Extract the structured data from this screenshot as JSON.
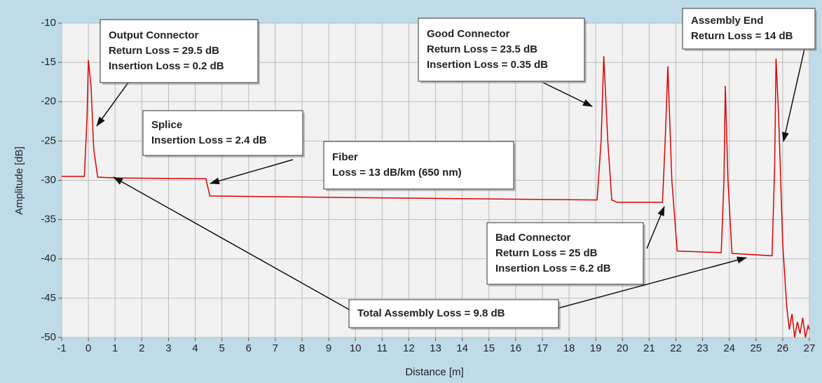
{
  "chart_data": {
    "type": "line",
    "xlabel": "Distance [m]",
    "ylabel": "Amplitude [dB]",
    "xlim": [
      -1,
      27
    ],
    "ylim": [
      -50,
      -10
    ],
    "xticks": [
      -1,
      0,
      1,
      2,
      3,
      4,
      5,
      6,
      7,
      8,
      9,
      10,
      11,
      12,
      13,
      14,
      15,
      16,
      17,
      18,
      19,
      20,
      21,
      22,
      23,
      24,
      25,
      26,
      27
    ],
    "yticks": [
      -10,
      -15,
      -20,
      -25,
      -30,
      -35,
      -40,
      -45,
      -50
    ],
    "grid": true,
    "x": [
      -1,
      -0.15,
      -0.05,
      0.0,
      0.1,
      0.2,
      0.35,
      1,
      4.4,
      4.55,
      10,
      19.05,
      19.2,
      19.3,
      19.45,
      19.6,
      19.8,
      21.5,
      21.6,
      21.7,
      21.85,
      22.05,
      23.7,
      23.8,
      23.85,
      23.95,
      24.1,
      25.6,
      25.7,
      25.75,
      25.85,
      26.0,
      26.15,
      26.25,
      26.35,
      26.45,
      26.55,
      26.65,
      26.75,
      26.85,
      26.95,
      27
    ],
    "series": [
      {
        "color": "#e00000",
        "values": [
          -29.5,
          -29.5,
          -22,
          -14.7,
          -18,
          -26,
          -29.6,
          -29.7,
          -29.8,
          -32,
          -32.2,
          -32.5,
          -25,
          -14.2,
          -25,
          -32.5,
          -32.8,
          -32.8,
          -25,
          -15.5,
          -30,
          -39,
          -39.2,
          -30,
          -18,
          -30,
          -39.3,
          -39.6,
          -28,
          -14.5,
          -22,
          -38,
          -46,
          -49,
          -47,
          -50,
          -48,
          -49.5,
          -47.5,
          -50,
          -48.5,
          -49
        ]
      }
    ],
    "annotations": [
      {
        "lines": [
          "Output Connector",
          "Return Loss = 29.5 dB",
          "Insertion Loss = 0.2 dB"
        ]
      },
      {
        "lines": [
          "Splice",
          "Insertion Loss = 2.4 dB"
        ]
      },
      {
        "lines": [
          "Fiber",
          "Loss = 13 dB/km (650 nm)"
        ]
      },
      {
        "lines": [
          "Good Connector",
          "Return Loss = 23.5 dB",
          "Insertion Loss = 0.35 dB"
        ]
      },
      {
        "lines": [
          "Assembly End",
          "Return Loss = 14 dB"
        ]
      },
      {
        "lines": [
          "Bad Connector",
          "Return Loss = 25 dB",
          "Insertion Loss = 6.2 dB"
        ]
      },
      {
        "lines": [
          "Total Assembly Loss = 9.8 dB"
        ]
      }
    ]
  }
}
